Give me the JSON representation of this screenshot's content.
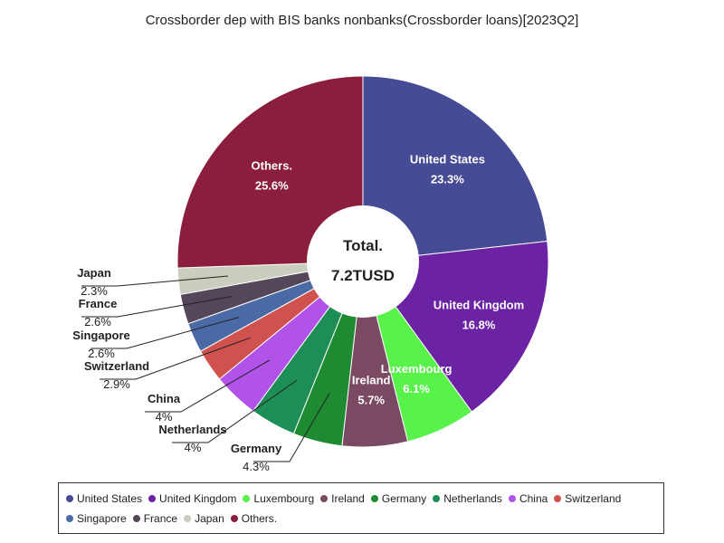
{
  "chart_data": {
    "type": "pie",
    "title": "Crossborder dep with BIS banks nonbanks(Crossborder loans)[2023Q2]",
    "center_label": "Total.",
    "center_value": "7.2TUSD",
    "slices": [
      {
        "name": "United States",
        "value": 23.3,
        "label": "23.3%",
        "color": "#454b94"
      },
      {
        "name": "United Kingdom",
        "value": 16.8,
        "label": "16.8%",
        "color": "#6b23a4"
      },
      {
        "name": "Luxembourg",
        "value": 6.1,
        "label": "6.1%",
        "color": "#58f24a"
      },
      {
        "name": "Ireland",
        "value": 5.7,
        "label": "5.7%",
        "color": "#7a4a62"
      },
      {
        "name": "Germany",
        "value": 4.3,
        "label": "4.3%",
        "color": "#1e8a32"
      },
      {
        "name": "Netherlands",
        "value": 4.0,
        "label": "4%",
        "color": "#1c8e56"
      },
      {
        "name": "China",
        "value": 4.0,
        "label": "4%",
        "color": "#b152e8"
      },
      {
        "name": "Switzerland",
        "value": 2.9,
        "label": "2.9%",
        "color": "#d0524e"
      },
      {
        "name": "Singapore",
        "value": 2.6,
        "label": "2.6%",
        "color": "#4a6aa6"
      },
      {
        "name": "France",
        "value": 2.6,
        "label": "2.6%",
        "color": "#55475a"
      },
      {
        "name": "Japan",
        "value": 2.3,
        "label": "2.3%",
        "color": "#c9cebf"
      },
      {
        "name": "Others.",
        "value": 25.6,
        "label": "25.6%",
        "color": "#8b1e3d"
      }
    ],
    "legend_position": "bottom"
  }
}
